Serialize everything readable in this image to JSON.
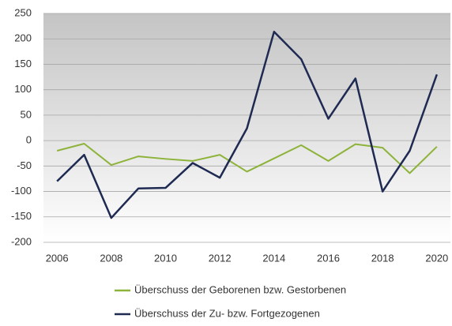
{
  "chart_data": {
    "type": "line",
    "x": [
      2006,
      2007,
      2008,
      2009,
      2010,
      2011,
      2012,
      2013,
      2014,
      2015,
      2016,
      2017,
      2018,
      2019,
      2020
    ],
    "series": [
      {
        "name": "Überschuss der Geborenen bzw. Gestorbenen",
        "color": "#8db33a",
        "values": [
          -20,
          -6,
          -48,
          -31,
          -36,
          -40,
          -28,
          -61,
          -35,
          -9,
          -40,
          -7,
          -14,
          -64,
          -12
        ]
      },
      {
        "name": "Überschuss der Zu- bzw. Fortgezogenen",
        "color": "#1f2a52",
        "values": [
          -80,
          -28,
          -152,
          -94,
          -93,
          -44,
          -73,
          24,
          214,
          160,
          43,
          122,
          -100,
          -20,
          130
        ]
      }
    ],
    "xlim": [
      2005.5,
      2020.5
    ],
    "xticks": [
      2006,
      2008,
      2010,
      2012,
      2014,
      2016,
      2018,
      2020
    ],
    "ylim": [
      -200,
      250
    ],
    "yticks": [
      -200,
      -150,
      -100,
      -50,
      0,
      50,
      100,
      150,
      200,
      250
    ],
    "grid": true,
    "legend": "bottom"
  }
}
